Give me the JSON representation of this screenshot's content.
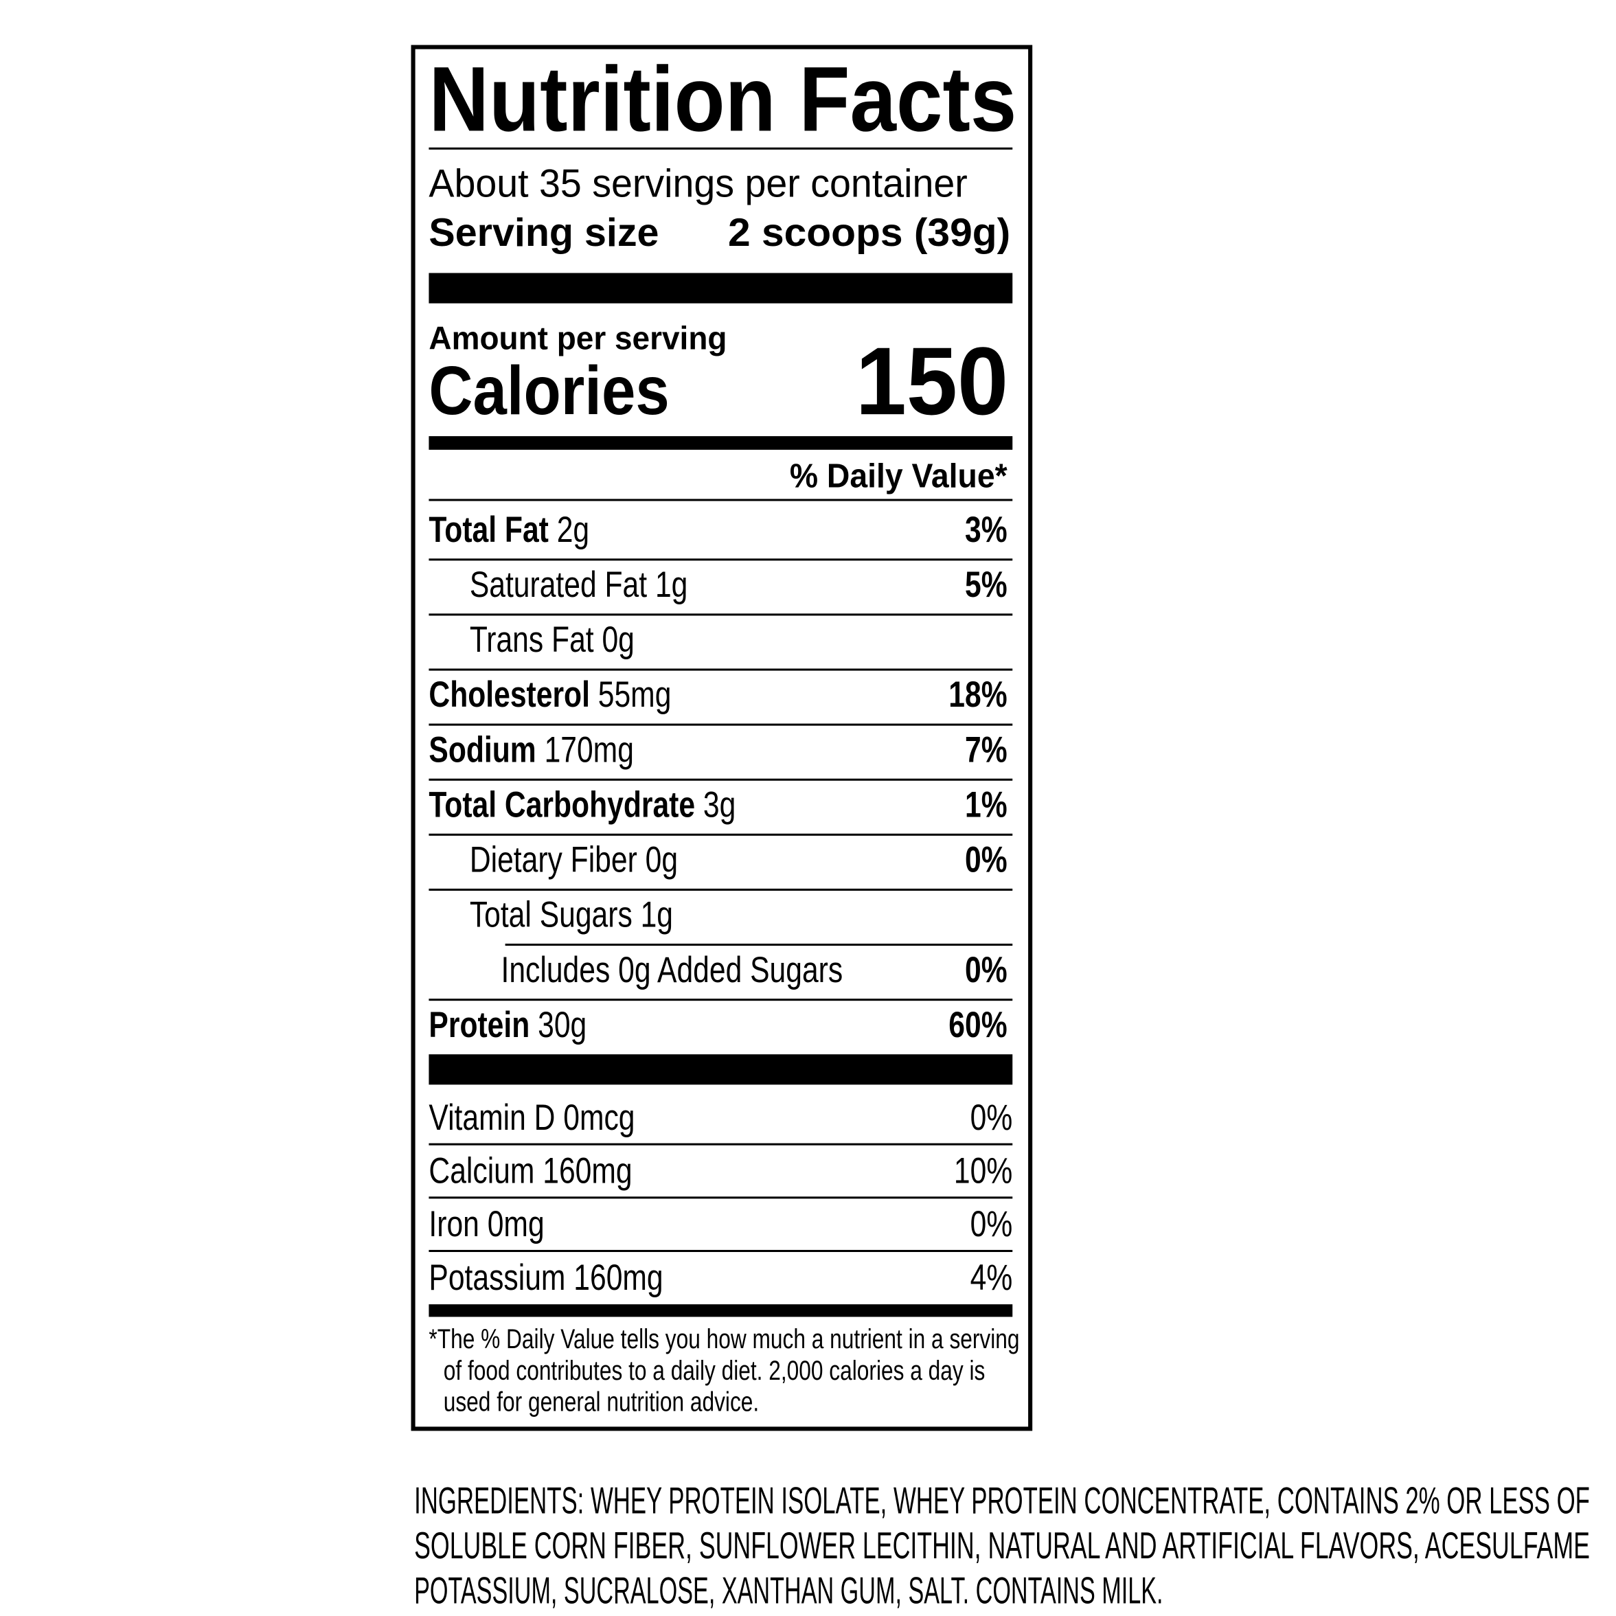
{
  "label": {
    "title": "Nutrition Facts",
    "servings": "About 35 servings per container",
    "serving_size": {
      "label": "Serving size",
      "value": "2 scoops (39g)"
    },
    "amount_per_serving": "Amount per serving",
    "calories": {
      "label": "Calories",
      "value": "150"
    },
    "dv_header": "% Daily Value*",
    "nutrients": [
      {
        "name": "Total Fat",
        "amount": "2g",
        "dv": "3%"
      },
      {
        "name": "Saturated Fat",
        "amount": "1g",
        "dv": "5%"
      },
      {
        "name": "Trans Fat",
        "amount": "0g"
      },
      {
        "name": "Cholesterol",
        "amount": "55mg",
        "dv": "18%"
      },
      {
        "name": "Sodium",
        "amount": "170mg",
        "dv": "7%"
      },
      {
        "name": "Total Carbohydrate",
        "amount": "3g",
        "dv": "1%"
      },
      {
        "name": "Dietary Fiber",
        "amount": "0g",
        "dv": "0%"
      },
      {
        "name": "Total Sugars",
        "amount": "1g"
      },
      {
        "name": "Includes 0g Added Sugars",
        "dv": "0%"
      },
      {
        "name": "Protein",
        "amount": "30g",
        "dv": "60%"
      }
    ],
    "vitamins": [
      {
        "name": "Vitamin D",
        "amount": "0mcg",
        "dv": "0%"
      },
      {
        "name": "Calcium",
        "amount": "160mg",
        "dv": "10%"
      },
      {
        "name": "Iron",
        "amount": "0mg",
        "dv": "0%"
      },
      {
        "name": "Potassium",
        "amount": "160mg",
        "dv": "4%"
      }
    ],
    "footnote": [
      "*The % Daily Value tells you how much a nutrient in a serving",
      "of food contributes to a daily diet. 2,000 calories a day is",
      "used for general nutrition advice."
    ]
  },
  "ingredients": [
    "INGREDIENTS: WHEY PROTEIN ISOLATE, WHEY PROTEIN CONCENTRATE, CONTAINS 2% OR LESS OF",
    "SOLUBLE CORN FIBER, SUNFLOWER LECITHIN, NATURAL AND ARTIFICIAL FLAVORS, ACESULFAME",
    "POTASSIUM, SUCRALOSE, XANTHAN GUM, SALT. CONTAINS MILK."
  ]
}
